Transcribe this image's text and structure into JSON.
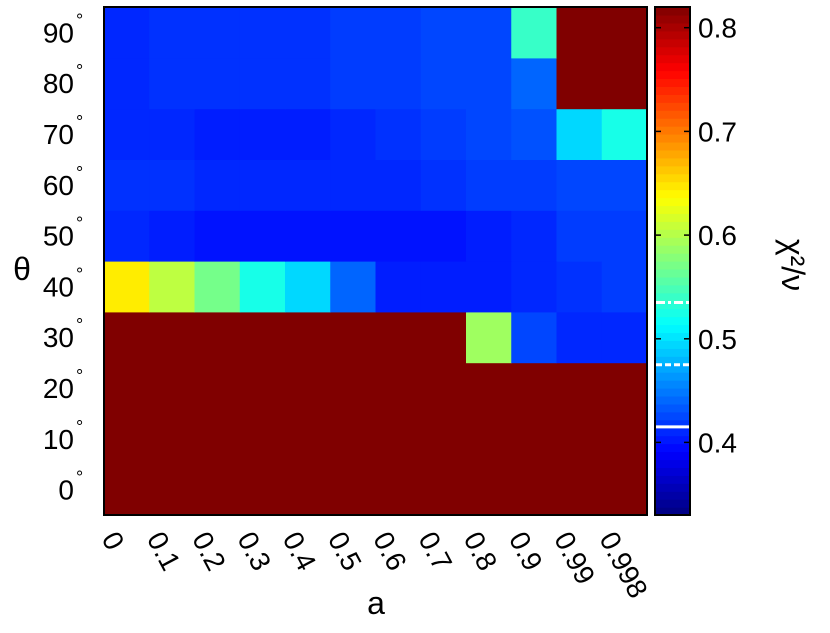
{
  "chart_data": {
    "type": "heatmap",
    "title": "",
    "xlabel": "a",
    "ylabel": "θ",
    "x_categories": [
      "0",
      "0.1",
      "0.2",
      "0.3",
      "0.4",
      "0.5",
      "0.6",
      "0.7",
      "0.8",
      "0.9",
      "0.99",
      "0.998"
    ],
    "y_categories": [
      "0",
      "10",
      "20",
      "30",
      "40",
      "50",
      "60",
      "70",
      "80",
      "90"
    ],
    "y_tick_suffix": "°",
    "values": [
      [
        0.82,
        0.82,
        0.82,
        0.82,
        0.82,
        0.82,
        0.82,
        0.82,
        0.82,
        0.82,
        0.82,
        0.82
      ],
      [
        0.82,
        0.82,
        0.82,
        0.82,
        0.82,
        0.82,
        0.82,
        0.82,
        0.82,
        0.82,
        0.82,
        0.82
      ],
      [
        0.82,
        0.82,
        0.82,
        0.82,
        0.82,
        0.82,
        0.82,
        0.82,
        0.82,
        0.82,
        0.82,
        0.82
      ],
      [
        0.82,
        0.82,
        0.82,
        0.82,
        0.82,
        0.82,
        0.82,
        0.82,
        0.59,
        0.425,
        0.41,
        0.41
      ],
      [
        0.645,
        0.605,
        0.57,
        0.525,
        0.495,
        0.44,
        0.405,
        0.405,
        0.405,
        0.41,
        0.415,
        0.42
      ],
      [
        0.41,
        0.405,
        0.4,
        0.4,
        0.4,
        0.4,
        0.4,
        0.4,
        0.405,
        0.41,
        0.42,
        0.42
      ],
      [
        0.415,
        0.415,
        0.41,
        0.41,
        0.41,
        0.41,
        0.41,
        0.415,
        0.42,
        0.42,
        0.425,
        0.425
      ],
      [
        0.41,
        0.41,
        0.405,
        0.405,
        0.405,
        0.41,
        0.415,
        0.42,
        0.425,
        0.43,
        0.495,
        0.525
      ],
      [
        0.41,
        0.415,
        0.415,
        0.415,
        0.415,
        0.42,
        0.42,
        0.425,
        0.425,
        0.44,
        0.82,
        0.82
      ],
      [
        0.41,
        0.415,
        0.415,
        0.415,
        0.415,
        0.42,
        0.42,
        0.425,
        0.425,
        0.54,
        0.82,
        0.82
      ]
    ],
    "colorbar": {
      "label": "χ²/ν",
      "min": 0.33,
      "max": 0.82,
      "ticks": [
        "0.4",
        "0.5",
        "0.6",
        "0.7",
        "0.8"
      ],
      "tick_values": [
        0.4,
        0.5,
        0.6,
        0.7,
        0.8
      ],
      "reference_lines": [
        {
          "value": 0.415,
          "style": "solid"
        },
        {
          "value": 0.475,
          "style": "dashed"
        },
        {
          "value": 0.535,
          "style": "dashdot"
        }
      ]
    },
    "colormap": "jet",
    "grid": false
  }
}
